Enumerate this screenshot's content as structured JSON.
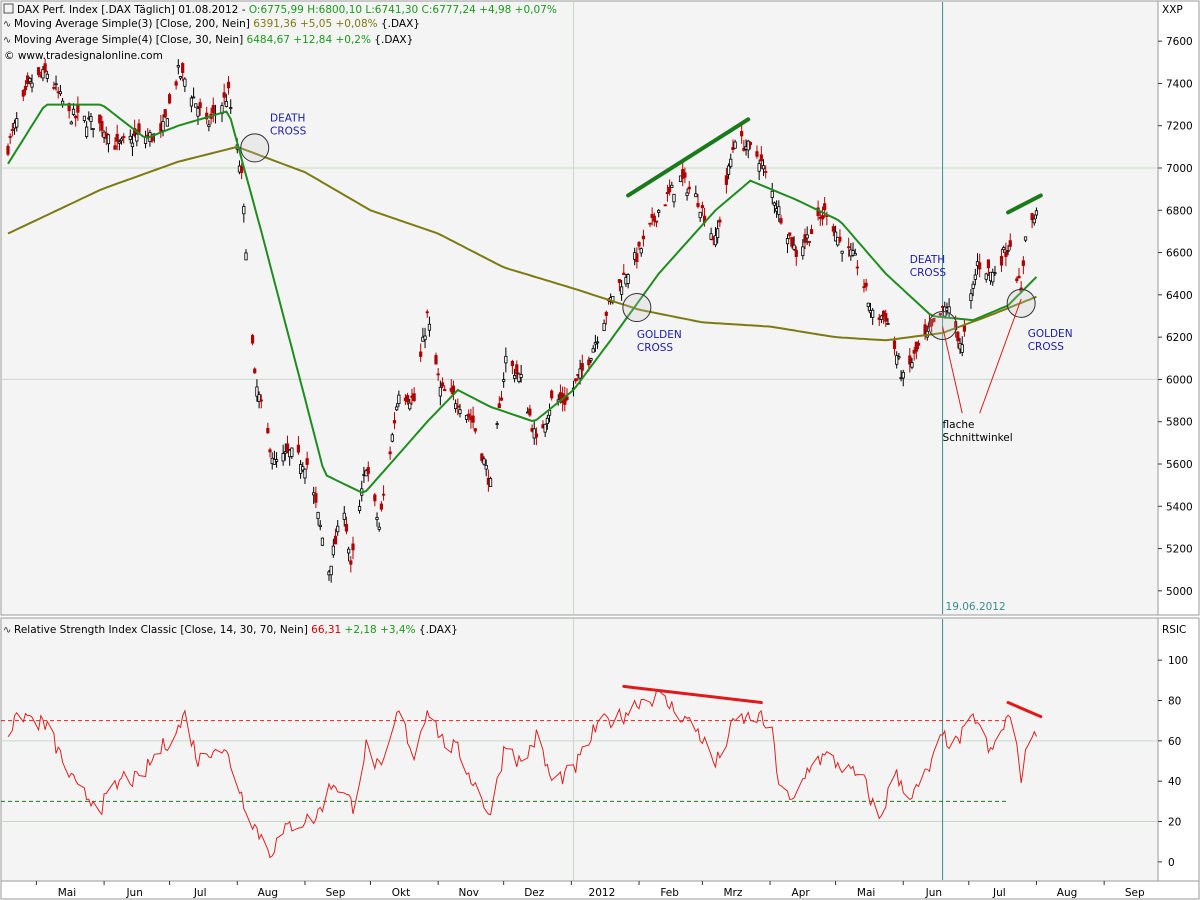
{
  "header": {
    "line1_prefix": "DAX Perf. Index [.DAX  Täglich] 01.08.2012 - ",
    "line1_values": "O:6775,99 H:6800,10 L:6741,30 C:6777,24 +4,98 +0,07%",
    "ma200_prefix": "Moving Average Simple(3) [Close, 200, Nein] ",
    "ma200_values": "6391,36 +5,05 +0,08%",
    "ma200_suffix": " {.DAX}",
    "ma30_prefix": "Moving Average Simple(4) [Close, 30, Nein] ",
    "ma30_values": "6484,67 +12,84 +0,2%",
    "ma30_suffix": " {.DAX}",
    "copyright": "© www.tradesignalonline.com",
    "rsi_prefix": "Relative Strength Index Classic [Close, 14, 30, 70, Nein] ",
    "rsi_value": "66,31",
    "rsi_change": "+2,18 +3,4%",
    "rsi_suffix": " {.DAX}",
    "price_axis_code": "XXP",
    "rsi_axis_code": "RSIC"
  },
  "colors": {
    "panel_bg": "#f4f4f4",
    "grid": "#c8d8c8",
    "candle": "#000000",
    "candle_down": "#b00000",
    "ma30": "#1e8c1e",
    "ma200": "#7c7a10",
    "rsi": "#e02020",
    "annotation_text": "#1a1aa8",
    "green_value": "#1a9a1a",
    "olive_value": "#7c7a10",
    "red_value": "#cc0000",
    "level_70": "#dd2222",
    "level_30": "#1e7a1e",
    "marker_line": "#3c8c8c",
    "trend_green": "#1a7a1a",
    "trend_red": "#e01a1a"
  },
  "chart_data": [
    {
      "type": "candlestick",
      "title": "DAX Perf. Index",
      "x_labels": [
        "Mai",
        "Jun",
        "Jul",
        "Aug",
        "Sep",
        "Okt",
        "Nov",
        "Dez",
        "2012",
        "Feb",
        "Mrz",
        "Apr",
        "Mai",
        "Jun",
        "Jul",
        "Aug",
        "Sep"
      ],
      "ylim": [
        4900,
        7700
      ],
      "y_ticks": [
        5000,
        5200,
        5400,
        5600,
        5800,
        6000,
        6200,
        6400,
        6600,
        6800,
        7000,
        7200,
        7400,
        7600
      ],
      "grid_y": [
        6000,
        7000
      ],
      "grid_dates": [
        "2012-01-02"
      ],
      "vertical_marker": {
        "date": "2012-06-19",
        "label": "19.06.2012"
      },
      "close_anchors": [
        [
          "2011-04-18",
          7100
        ],
        [
          "2011-04-28",
          7400
        ],
        [
          "2011-05-06",
          7450
        ],
        [
          "2011-05-16",
          7250
        ],
        [
          "2011-05-31",
          7200
        ],
        [
          "2011-06-07",
          7100
        ],
        [
          "2011-06-16",
          7150
        ],
        [
          "2011-06-27",
          7150
        ],
        [
          "2011-07-05",
          7450
        ],
        [
          "2011-07-08",
          7420
        ],
        [
          "2011-07-18",
          7200
        ],
        [
          "2011-07-28",
          7350
        ],
        [
          "2011-08-03",
          6950
        ],
        [
          "2011-08-09",
          6000
        ],
        [
          "2011-08-18",
          5600
        ],
        [
          "2011-08-25",
          5650
        ],
        [
          "2011-09-02",
          5600
        ],
        [
          "2011-09-12",
          5100
        ],
        [
          "2011-09-19",
          5400
        ],
        [
          "2011-09-22",
          5100
        ],
        [
          "2011-09-29",
          5600
        ],
        [
          "2011-10-05",
          5300
        ],
        [
          "2011-10-14",
          5950
        ],
        [
          "2011-10-21",
          5900
        ],
        [
          "2011-10-27",
          6300
        ],
        [
          "2011-11-02",
          5950
        ],
        [
          "2011-11-10",
          5900
        ],
        [
          "2011-11-17",
          5800
        ],
        [
          "2011-11-25",
          5500
        ],
        [
          "2011-12-02",
          6100
        ],
        [
          "2011-12-09",
          6000
        ],
        [
          "2011-12-16",
          5700
        ],
        [
          "2011-12-23",
          5900
        ],
        [
          "2011-12-30",
          5900
        ],
        [
          "2012-01-09",
          6100
        ],
        [
          "2012-01-20",
          6400
        ],
        [
          "2012-02-01",
          6600
        ],
        [
          "2012-02-10",
          6800
        ],
        [
          "2012-02-20",
          6950
        ],
        [
          "2012-02-28",
          6850
        ],
        [
          "2012-03-07",
          6650
        ],
        [
          "2012-03-16",
          7150
        ],
        [
          "2012-03-27",
          7050
        ],
        [
          "2012-04-05",
          6800
        ],
        [
          "2012-04-13",
          6600
        ],
        [
          "2012-04-20",
          6700
        ],
        [
          "2012-04-27",
          6800
        ],
        [
          "2012-05-03",
          6650
        ],
        [
          "2012-05-11",
          6550
        ],
        [
          "2012-05-18",
          6300
        ],
        [
          "2012-05-24",
          6300
        ],
        [
          "2012-06-01",
          6000
        ],
        [
          "2012-06-08",
          6150
        ],
        [
          "2012-06-15",
          6250
        ],
        [
          "2012-06-21",
          6350
        ],
        [
          "2012-06-28",
          6150
        ],
        [
          "2012-07-05",
          6550
        ],
        [
          "2012-07-12",
          6500
        ],
        [
          "2012-07-20",
          6650
        ],
        [
          "2012-07-25",
          6400
        ],
        [
          "2012-07-27",
          6700
        ],
        [
          "2012-08-01",
          6777
        ]
      ],
      "ma30_anchors": [
        [
          "2011-04-18",
          7020
        ],
        [
          "2011-05-05",
          7300
        ],
        [
          "2011-05-31",
          7300
        ],
        [
          "2011-06-20",
          7140
        ],
        [
          "2011-07-05",
          7200
        ],
        [
          "2011-07-28",
          7270
        ],
        [
          "2011-08-12",
          6700
        ],
        [
          "2011-08-31",
          5950
        ],
        [
          "2011-09-10",
          5550
        ],
        [
          "2011-09-28",
          5460
        ],
        [
          "2011-10-10",
          5600
        ],
        [
          "2011-10-27",
          5800
        ],
        [
          "2011-11-10",
          5950
        ],
        [
          "2011-11-25",
          5870
        ],
        [
          "2011-12-15",
          5800
        ],
        [
          "2012-01-02",
          5950
        ],
        [
          "2012-01-20",
          6200
        ],
        [
          "2012-02-10",
          6500
        ],
        [
          "2012-03-07",
          6800
        ],
        [
          "2012-03-23",
          6940
        ],
        [
          "2012-04-13",
          6850
        ],
        [
          "2012-05-03",
          6750
        ],
        [
          "2012-05-24",
          6500
        ],
        [
          "2012-06-14",
          6300
        ],
        [
          "2012-07-03",
          6280
        ],
        [
          "2012-07-19",
          6350
        ],
        [
          "2012-08-01",
          6485
        ]
      ],
      "ma200_anchors": [
        [
          "2011-04-18",
          6690
        ],
        [
          "2011-05-31",
          6900
        ],
        [
          "2011-07-05",
          7030
        ],
        [
          "2011-08-01",
          7100
        ],
        [
          "2011-09-01",
          6980
        ],
        [
          "2011-10-01",
          6800
        ],
        [
          "2011-11-01",
          6690
        ],
        [
          "2011-12-01",
          6530
        ],
        [
          "2012-01-02",
          6430
        ],
        [
          "2012-02-01",
          6330
        ],
        [
          "2012-03-01",
          6270
        ],
        [
          "2012-04-01",
          6250
        ],
        [
          "2012-05-01",
          6200
        ],
        [
          "2012-05-24",
          6185
        ],
        [
          "2012-06-19",
          6220
        ],
        [
          "2012-07-10",
          6300
        ],
        [
          "2012-08-01",
          6391
        ]
      ],
      "cross_markers": [
        {
          "date": "2011-08-09",
          "value": 7095
        },
        {
          "date": "2012-01-31",
          "value": 6340
        },
        {
          "date": "2012-06-19",
          "value": 6255
        },
        {
          "date": "2012-07-25",
          "value": 6360
        }
      ],
      "trend_lines": [
        {
          "from": [
            "2012-01-27",
            6870
          ],
          "to": [
            "2012-03-22",
            7230
          ],
          "color_key": "trend_green"
        },
        {
          "from": [
            "2012-07-19",
            6790
          ],
          "to": [
            "2012-08-03",
            6870
          ],
          "color_key": "trend_green"
        }
      ],
      "annotations": [
        {
          "id": "death1",
          "lines": [
            "DEATH",
            "CROSS"
          ],
          "date": "2011-08-16",
          "value": 7220,
          "color_key": "annotation_text"
        },
        {
          "id": "golden1",
          "lines": [
            "GOLDEN",
            "CROSS"
          ],
          "date": "2012-01-31",
          "value": 6195,
          "color_key": "annotation_text"
        },
        {
          "id": "death2",
          "lines": [
            "DEATH",
            "CROSS"
          ],
          "date": "2012-06-04",
          "value": 6550,
          "color_key": "annotation_text"
        },
        {
          "id": "golden2",
          "lines": [
            "GOLDEN",
            "CROSS"
          ],
          "date": "2012-07-28",
          "value": 6200,
          "color_key": "annotation_text"
        },
        {
          "id": "flache",
          "lines": [
            "flache",
            "Schnittwinkel"
          ],
          "date": "2012-06-19",
          "value": 5770,
          "color_key": "candle"
        }
      ],
      "pointer_lines": [
        {
          "from": [
            "2012-06-19",
            6250
          ],
          "to": [
            "2012-06-28",
            5840
          ]
        },
        {
          "from": [
            "2012-07-25",
            6380
          ],
          "to": [
            "2012-07-06",
            5840
          ]
        }
      ]
    },
    {
      "type": "line",
      "title": "Relative Strength Index Classic",
      "ylim": [
        -8,
        110
      ],
      "y_ticks": [
        0,
        20,
        40,
        60,
        80,
        100
      ],
      "levels": [
        {
          "value": 70,
          "color_key": "level_70"
        },
        {
          "value": 30,
          "color_key": "level_30"
        }
      ],
      "grid_y": [
        20,
        60
      ],
      "rsi_anchors": [
        [
          "2011-04-18",
          65
        ],
        [
          "2011-04-25",
          73
        ],
        [
          "2011-05-06",
          67
        ],
        [
          "2011-05-13",
          50
        ],
        [
          "2011-05-20",
          35
        ],
        [
          "2011-05-31",
          28
        ],
        [
          "2011-06-10",
          42
        ],
        [
          "2011-06-17",
          40
        ],
        [
          "2011-06-24",
          52
        ],
        [
          "2011-07-05",
          66
        ],
        [
          "2011-07-08",
          73
        ],
        [
          "2011-07-14",
          50
        ],
        [
          "2011-07-22",
          58
        ],
        [
          "2011-07-28",
          52
        ],
        [
          "2011-08-04",
          30
        ],
        [
          "2011-08-09",
          18
        ],
        [
          "2011-08-16",
          5
        ],
        [
          "2011-08-25",
          18
        ],
        [
          "2011-09-06",
          22
        ],
        [
          "2011-09-14",
          40
        ],
        [
          "2011-09-23",
          28
        ],
        [
          "2011-09-29",
          57
        ],
        [
          "2011-10-06",
          44
        ],
        [
          "2011-10-14",
          75
        ],
        [
          "2011-10-21",
          52
        ],
        [
          "2011-10-27",
          77
        ],
        [
          "2011-11-03",
          60
        ],
        [
          "2011-11-10",
          55
        ],
        [
          "2011-11-17",
          40
        ],
        [
          "2011-11-25",
          23
        ],
        [
          "2011-12-02",
          60
        ],
        [
          "2011-12-09",
          48
        ],
        [
          "2011-12-16",
          62
        ],
        [
          "2011-12-23",
          40
        ],
        [
          "2012-01-02",
          45
        ],
        [
          "2012-01-13",
          68
        ],
        [
          "2012-01-24",
          72
        ],
        [
          "2012-02-01",
          80
        ],
        [
          "2012-02-10",
          82
        ],
        [
          "2012-02-20",
          73
        ],
        [
          "2012-02-28",
          65
        ],
        [
          "2012-03-07",
          48
        ],
        [
          "2012-03-16",
          70
        ],
        [
          "2012-03-27",
          72
        ],
        [
          "2012-04-02",
          63
        ],
        [
          "2012-04-05",
          40
        ],
        [
          "2012-04-11",
          28
        ],
        [
          "2012-04-20",
          50
        ],
        [
          "2012-04-27",
          52
        ],
        [
          "2012-05-03",
          48
        ],
        [
          "2012-05-14",
          40
        ],
        [
          "2012-05-21",
          20
        ],
        [
          "2012-05-28",
          44
        ],
        [
          "2012-06-05",
          32
        ],
        [
          "2012-06-13",
          46
        ],
        [
          "2012-06-19",
          62
        ],
        [
          "2012-06-25",
          58
        ],
        [
          "2012-07-04",
          72
        ],
        [
          "2012-07-11",
          53
        ],
        [
          "2012-07-18",
          70
        ],
        [
          "2012-07-20",
          72
        ],
        [
          "2012-07-25",
          43
        ],
        [
          "2012-07-30",
          64
        ],
        [
          "2012-08-01",
          66
        ]
      ],
      "trend_lines": [
        {
          "from": [
            "2012-01-25",
            87
          ],
          "to": [
            "2012-03-28",
            79
          ],
          "color_key": "trend_red"
        },
        {
          "from": [
            "2012-07-19",
            79
          ],
          "to": [
            "2012-08-03",
            72
          ],
          "color_key": "trend_red"
        }
      ]
    }
  ]
}
